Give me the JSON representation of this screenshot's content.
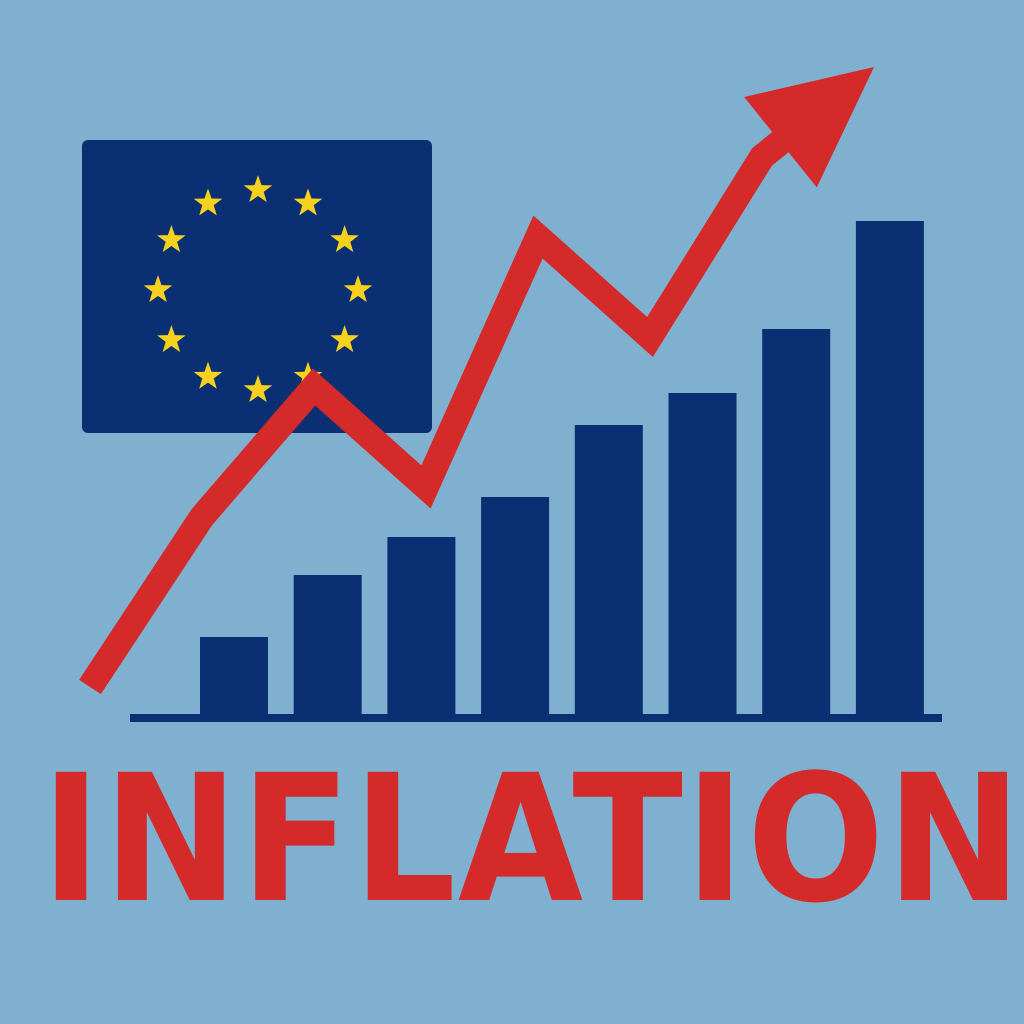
{
  "page": {
    "background": "#80b0cf"
  },
  "flag": {
    "icon": "eu-flag-icon",
    "background": "#0a2f73",
    "star_color": "#f6d21e",
    "star_count": 12
  },
  "chart_data": {
    "type": "bar",
    "title": "INFLATION",
    "xlabel": "",
    "ylabel": "",
    "categories": [
      "",
      "",
      "",
      "",
      "",
      "",
      "",
      ""
    ],
    "series": [
      {
        "values": [
          80,
          142,
          180,
          220,
          292,
          324,
          388,
          496
        ]
      }
    ],
    "trend_line": {
      "values": [
        30,
        200,
        330,
        230,
        480,
        380,
        560,
        650
      ],
      "arrow": true
    },
    "ylim": [
      0,
      600
    ],
    "grid": false,
    "legend": "none",
    "colors": {
      "bars": "#0a2f73",
      "trend": "#d42a2a",
      "baseline": "#0a2f73",
      "title": "#d42a2a"
    }
  }
}
